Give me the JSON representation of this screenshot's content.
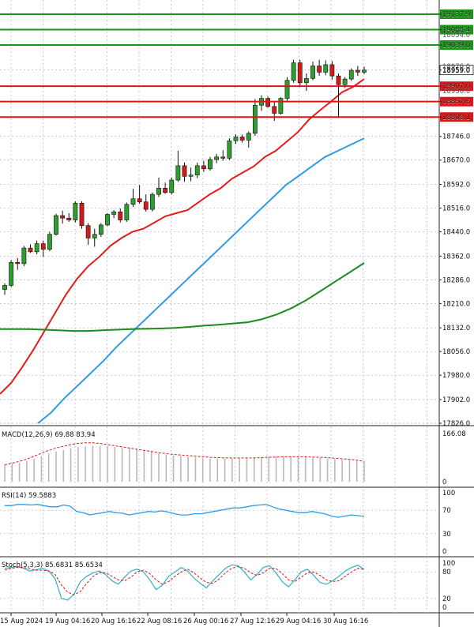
{
  "colors": {
    "bull": "#2e9e2e",
    "bear": "#d11a1a",
    "wick": "#111111",
    "ma_red": "#e21b1b",
    "ma_blue": "#2f9be6",
    "ma_green": "#1f8a1f",
    "level_green": "#179617",
    "level_red": "#e01414",
    "grid": "#aeb5c2",
    "current_price_box": "#ffffff",
    "rsi": "#2f9be6",
    "stoch_main": "#2bb3c6",
    "stoch_signal": "#e01414",
    "macd_hist": "#b9b9b9",
    "macd_signal": "#e01414"
  },
  "chart_data": [
    {
      "type": "candlestick",
      "panel": "price",
      "y_ticks": [
        "19137.9",
        "19088.4",
        "19039.0",
        "18959.0",
        "18907.0",
        "18857.6",
        "18808.1",
        "18746.0",
        "18670.0",
        "18592.0",
        "18516.0",
        "18440.0",
        "18362.0",
        "18286.0",
        "18210.0",
        "18132.0",
        "18056.0",
        "17980.0",
        "17902.0",
        "17826.0"
      ],
      "overlapped_tick_labels": [
        "18054.0",
        "18976.0",
        "18936.0"
      ],
      "ylim": [
        17826.0,
        19137.9
      ],
      "current_price": "18959.0",
      "levels": [
        {
          "value": 19137.9,
          "label": "19137.9",
          "color": "green"
        },
        {
          "value": 19088.4,
          "label": "19088.4",
          "color": "green"
        },
        {
          "value": 19039.0,
          "label": "19039.0",
          "color": "green"
        },
        {
          "value": 18907.0,
          "label": "18907.0",
          "color": "red"
        },
        {
          "value": 18857.6,
          "label": "18857.6",
          "color": "red"
        },
        {
          "value": 18808.1,
          "label": "18808.1",
          "color": "red"
        }
      ],
      "x_labels": [
        "15 Aug 2024",
        "19 Aug 04:16",
        "20 Aug 16:16",
        "22 Aug 08:16",
        "26 Aug 00:16",
        "27 Aug 12:16",
        "29 Aug 04:16",
        "30 Aug 16:16"
      ],
      "candles": [
        {
          "o": 18255,
          "h": 18275,
          "l": 18238,
          "c": 18268
        },
        {
          "o": 18268,
          "h": 18350,
          "l": 18262,
          "c": 18342
        },
        {
          "o": 18342,
          "h": 18356,
          "l": 18318,
          "c": 18338
        },
        {
          "o": 18338,
          "h": 18395,
          "l": 18330,
          "c": 18388
        },
        {
          "o": 18388,
          "h": 18400,
          "l": 18372,
          "c": 18376
        },
        {
          "o": 18376,
          "h": 18412,
          "l": 18368,
          "c": 18402
        },
        {
          "o": 18402,
          "h": 18412,
          "l": 18360,
          "c": 18384
        },
        {
          "o": 18384,
          "h": 18440,
          "l": 18378,
          "c": 18432
        },
        {
          "o": 18432,
          "h": 18498,
          "l": 18428,
          "c": 18492
        },
        {
          "o": 18492,
          "h": 18508,
          "l": 18466,
          "c": 18484
        },
        {
          "o": 18484,
          "h": 18500,
          "l": 18472,
          "c": 18478
        },
        {
          "o": 18478,
          "h": 18538,
          "l": 18470,
          "c": 18532
        },
        {
          "o": 18532,
          "h": 18538,
          "l": 18450,
          "c": 18460
        },
        {
          "o": 18460,
          "h": 18468,
          "l": 18398,
          "c": 18420
        },
        {
          "o": 18420,
          "h": 18450,
          "l": 18392,
          "c": 18432
        },
        {
          "o": 18432,
          "h": 18468,
          "l": 18424,
          "c": 18462
        },
        {
          "o": 18462,
          "h": 18500,
          "l": 18458,
          "c": 18496
        },
        {
          "o": 18496,
          "h": 18510,
          "l": 18484,
          "c": 18504
        },
        {
          "o": 18504,
          "h": 18515,
          "l": 18470,
          "c": 18478
        },
        {
          "o": 18478,
          "h": 18534,
          "l": 18472,
          "c": 18528
        },
        {
          "o": 18528,
          "h": 18578,
          "l": 18520,
          "c": 18546
        },
        {
          "o": 18546,
          "h": 18590,
          "l": 18530,
          "c": 18536
        },
        {
          "o": 18536,
          "h": 18560,
          "l": 18505,
          "c": 18512
        },
        {
          "o": 18512,
          "h": 18566,
          "l": 18505,
          "c": 18560
        },
        {
          "o": 18560,
          "h": 18614,
          "l": 18552,
          "c": 18580
        },
        {
          "o": 18580,
          "h": 18598,
          "l": 18562,
          "c": 18566
        },
        {
          "o": 18566,
          "h": 18614,
          "l": 18560,
          "c": 18606
        },
        {
          "o": 18606,
          "h": 18700,
          "l": 18600,
          "c": 18652
        },
        {
          "o": 18652,
          "h": 18662,
          "l": 18600,
          "c": 18618
        },
        {
          "o": 18618,
          "h": 18646,
          "l": 18602,
          "c": 18622
        },
        {
          "o": 18622,
          "h": 18662,
          "l": 18612,
          "c": 18652
        },
        {
          "o": 18652,
          "h": 18668,
          "l": 18632,
          "c": 18642
        },
        {
          "o": 18642,
          "h": 18680,
          "l": 18636,
          "c": 18672
        },
        {
          "o": 18672,
          "h": 18690,
          "l": 18660,
          "c": 18680
        },
        {
          "o": 18680,
          "h": 18702,
          "l": 18668,
          "c": 18676
        },
        {
          "o": 18676,
          "h": 18740,
          "l": 18670,
          "c": 18732
        },
        {
          "o": 18732,
          "h": 18752,
          "l": 18722,
          "c": 18744
        },
        {
          "o": 18744,
          "h": 18752,
          "l": 18726,
          "c": 18734
        },
        {
          "o": 18734,
          "h": 18762,
          "l": 18710,
          "c": 18756
        },
        {
          "o": 18756,
          "h": 18866,
          "l": 18748,
          "c": 18846
        },
        {
          "o": 18846,
          "h": 18878,
          "l": 18828,
          "c": 18868
        },
        {
          "o": 18868,
          "h": 18874,
          "l": 18838,
          "c": 18842
        },
        {
          "o": 18842,
          "h": 18858,
          "l": 18796,
          "c": 18820
        },
        {
          "o": 18820,
          "h": 18872,
          "l": 18816,
          "c": 18868
        },
        {
          "o": 18868,
          "h": 18936,
          "l": 18860,
          "c": 18926
        },
        {
          "o": 18926,
          "h": 18992,
          "l": 18918,
          "c": 18982
        },
        {
          "o": 18982,
          "h": 18992,
          "l": 18904,
          "c": 18918
        },
        {
          "o": 18918,
          "h": 18948,
          "l": 18892,
          "c": 18932
        },
        {
          "o": 18932,
          "h": 18986,
          "l": 18926,
          "c": 18972
        },
        {
          "o": 18972,
          "h": 18992,
          "l": 18940,
          "c": 18952
        },
        {
          "o": 18952,
          "h": 18990,
          "l": 18942,
          "c": 18976
        },
        {
          "o": 18976,
          "h": 18988,
          "l": 18928,
          "c": 18940
        },
        {
          "o": 18940,
          "h": 18948,
          "l": 18810,
          "c": 18912
        },
        {
          "o": 18912,
          "h": 18936,
          "l": 18902,
          "c": 18930
        },
        {
          "o": 18930,
          "h": 18964,
          "l": 18924,
          "c": 18958
        },
        {
          "o": 18958,
          "h": 18972,
          "l": 18940,
          "c": 18952
        },
        {
          "o": 18952,
          "h": 18970,
          "l": 18946,
          "c": 18959
        }
      ],
      "moving_averages": [
        {
          "color": "red",
          "points": [
            17920,
            17955,
            18005,
            18060,
            18120,
            18180,
            18240,
            18290,
            18330,
            18360,
            18395,
            18420,
            18440,
            18450,
            18470,
            18490,
            18500,
            18510,
            18535,
            18560,
            18580,
            18610,
            18630,
            18650,
            18680,
            18700,
            18730,
            18760,
            18800,
            18830,
            18858,
            18888,
            18905,
            18930
          ]
        },
        {
          "color": "blue",
          "points": [
            17826,
            17860,
            17905,
            17945,
            17985,
            18025,
            18070,
            18110,
            18150,
            18190,
            18230,
            18270,
            18310,
            18350,
            18390,
            18430,
            18470,
            18510,
            18550,
            18590,
            18620,
            18650,
            18680,
            18700,
            18720,
            18740
          ]
        },
        {
          "color": "green",
          "points": [
            18128,
            18128,
            18128,
            18126,
            18124,
            18122,
            18122,
            18124,
            18126,
            18128,
            18129,
            18130,
            18132,
            18135,
            18139,
            18142,
            18146,
            18150,
            18160,
            18175,
            18195,
            18220,
            18250,
            18280,
            18310,
            18340
          ]
        }
      ]
    },
    {
      "type": "bar",
      "panel": "macd",
      "title": "MACD(12,26,9) 69.88 83.94",
      "y_ticks": [
        "166.08",
        "0"
      ],
      "ylim": [
        0,
        166.08
      ],
      "histogram": [
        58,
        62,
        66,
        72,
        80,
        88,
        96,
        104,
        110,
        116,
        120,
        122,
        124,
        124,
        122,
        120,
        118,
        116,
        112,
        108,
        104,
        98,
        94,
        90,
        88,
        86,
        84,
        82,
        80,
        80,
        80,
        80,
        80,
        80,
        82,
        84,
        86,
        86,
        86,
        86,
        86,
        86,
        84,
        82,
        80,
        78,
        76,
        74,
        72,
        70
      ],
      "signal": [
        58,
        64,
        70,
        78,
        88,
        98,
        108,
        116,
        122,
        128,
        132,
        134,
        134,
        132,
        128,
        124,
        120,
        116,
        112,
        108,
        104,
        100,
        97,
        94,
        92,
        90,
        88,
        86,
        84,
        83,
        82,
        82,
        82,
        82,
        82,
        83,
        84,
        85,
        86,
        86,
        86,
        86,
        85,
        84,
        83,
        81,
        79,
        77,
        74,
        70
      ]
    },
    {
      "type": "line",
      "panel": "rsi",
      "title": "RSI(14) 59.5883",
      "y_ticks": [
        "100",
        "70",
        "30",
        "0"
      ],
      "ylim": [
        0,
        100
      ],
      "series": [
        {
          "values": [
            78,
            78,
            80,
            80,
            79,
            80,
            78,
            76,
            76,
            79,
            77,
            68,
            66,
            62,
            64,
            66,
            68,
            66,
            65,
            62,
            64,
            66,
            68,
            67,
            69,
            67,
            64,
            62,
            62,
            64,
            64,
            66,
            68,
            70,
            72,
            74,
            74,
            76,
            78,
            79,
            80,
            76,
            72,
            70,
            68,
            66,
            66,
            68,
            66,
            64,
            60,
            58,
            60,
            62,
            61,
            59.6
          ]
        }
      ]
    },
    {
      "type": "line",
      "panel": "stochastic",
      "title": "Stoch(5,3,3) 85.6831 85.6534",
      "y_ticks": [
        "100",
        "80",
        "20",
        "0"
      ],
      "ylim": [
        0,
        100
      ],
      "series": [
        {
          "values": [
            88,
            90,
            92,
            88,
            82,
            85,
            88,
            82,
            64,
            20,
            16,
            30,
            58,
            70,
            78,
            82,
            74,
            60,
            52,
            68,
            82,
            86,
            80,
            62,
            40,
            50,
            70,
            80,
            90,
            82,
            66,
            54,
            44,
            60,
            74,
            88,
            96,
            94,
            80,
            62,
            74,
            90,
            94,
            78,
            58,
            46,
            62,
            80,
            86,
            72,
            56,
            52,
            60,
            70,
            82,
            90,
            95,
            85.7
          ]
        },
        {
          "values": [
            84,
            88,
            90,
            90,
            87,
            84,
            84,
            82,
            74,
            50,
            34,
            28,
            36,
            54,
            70,
            78,
            78,
            70,
            62,
            60,
            68,
            80,
            84,
            76,
            62,
            52,
            58,
            70,
            80,
            86,
            78,
            66,
            56,
            54,
            64,
            78,
            88,
            92,
            88,
            78,
            72,
            78,
            88,
            88,
            76,
            62,
            58,
            68,
            78,
            80,
            72,
            62,
            58,
            60,
            70,
            80,
            88,
            85.7
          ]
        }
      ]
    }
  ]
}
